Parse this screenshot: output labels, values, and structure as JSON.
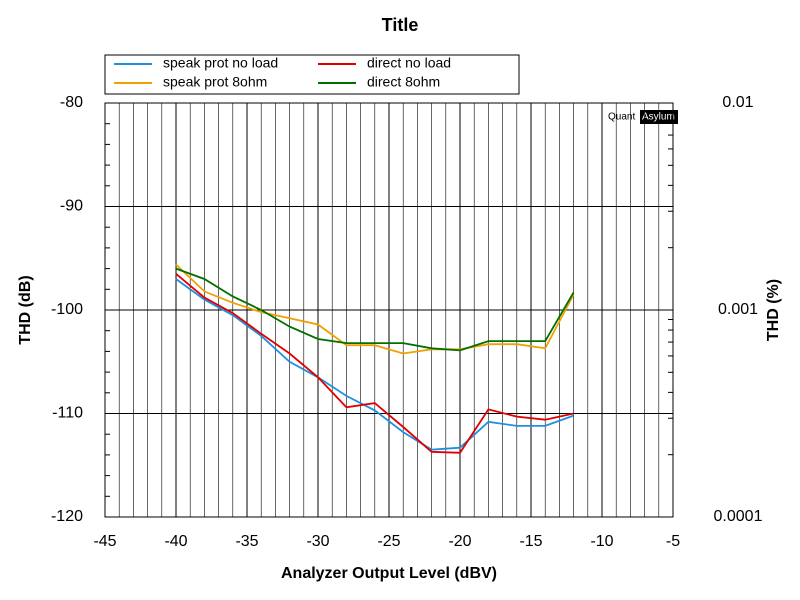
{
  "chart_data": {
    "type": "line",
    "title": "Title",
    "xlabel": "Analyzer Output Level (dBV)",
    "ylabel": "THD (dB)",
    "y2label": "THD (%)",
    "watermark": {
      "left": "Quant",
      "right": "Asylum"
    },
    "x": [
      -40,
      -38,
      -36,
      -34,
      -32,
      -30,
      -28,
      -26,
      -24,
      -22,
      -20,
      -18,
      -16,
      -14,
      -12
    ],
    "series": [
      {
        "name": "speak prot no load",
        "color": "#1f8fe0",
        "values": [
          -97,
          -99,
          -100.5,
          -102.5,
          -105,
          -106.5,
          -108.3,
          -109.7,
          -111.8,
          -113.5,
          -113.3,
          -110.8,
          -111.2,
          -111.2,
          -110.2
        ]
      },
      {
        "name": "direct no load",
        "color": "#e00000",
        "values": [
          -96.5,
          -98.8,
          -100.3,
          -102.3,
          -104.2,
          -106.5,
          -109.4,
          -109.0,
          -111.3,
          -113.7,
          -113.8,
          -109.6,
          -110.3,
          -110.6,
          -110.0
        ]
      },
      {
        "name": "speak prot 8ohm",
        "color": "#f0a000",
        "values": [
          -95.6,
          -98.2,
          -99.3,
          -100.2,
          -100.8,
          -101.4,
          -103.4,
          -103.4,
          -104.2,
          -103.8,
          -103.8,
          -103.3,
          -103.3,
          -103.7,
          -98.5
        ]
      },
      {
        "name": "direct 8ohm",
        "color": "#007000",
        "values": [
          -96.0,
          -97.0,
          -98.7,
          -100.0,
          -101.6,
          -102.8,
          -103.2,
          -103.2,
          -103.2,
          -103.7,
          -103.9,
          -103.0,
          -103.0,
          -103.0,
          -98.3
        ]
      }
    ],
    "xlim": [
      -45,
      -5
    ],
    "xticks": [
      -45,
      -40,
      -35,
      -30,
      -25,
      -20,
      -15,
      -10,
      -5
    ],
    "xminorticks": [
      -44,
      -43,
      -42,
      -41,
      -39,
      -38,
      -37,
      -36,
      -34,
      -33,
      -32,
      -31,
      -29,
      -28,
      -27,
      -26,
      -24,
      -23,
      -22,
      -21,
      -19,
      -18,
      -17,
      -16,
      -14,
      -13,
      -12,
      -11,
      -9,
      -8,
      -7,
      -6
    ],
    "ylim": [
      -120,
      -80
    ],
    "yticks": [
      -120,
      -110,
      -100,
      -90,
      -80
    ],
    "yminorticks": [
      -118,
      -116,
      -114,
      -112,
      -108,
      -106,
      -104,
      -102,
      -98,
      -96,
      -94,
      -92,
      -88,
      -86,
      -84,
      -82
    ],
    "y2lim": [
      0.0001,
      0.01
    ],
    "y2scale": "log",
    "y2ticks": [
      0.0001,
      0.001,
      0.01
    ],
    "y2minorticks": [
      0.0002,
      0.0003,
      0.0004,
      0.0005,
      0.0006,
      0.0007,
      0.0008,
      0.0009,
      0.002,
      0.003,
      0.004,
      0.005,
      0.006,
      0.007,
      0.008,
      0.009
    ],
    "grid": true,
    "legend": "top"
  }
}
